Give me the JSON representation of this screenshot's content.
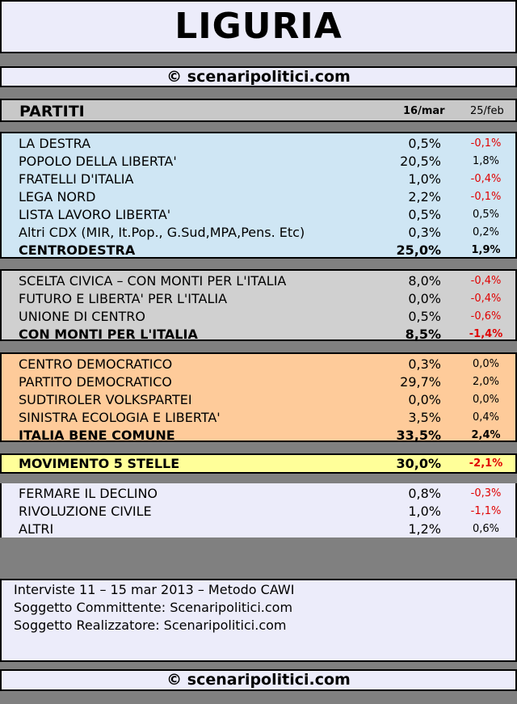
{
  "title": "LIGURIA",
  "credit": "© scenaripolitici.com",
  "header": {
    "label": "PARTITI",
    "date_current": "16/mar",
    "date_previous": "25/feb"
  },
  "groups": {
    "centrodestra": {
      "rows": [
        {
          "name": "LA DESTRA",
          "value": "0,5%",
          "delta": "-0,1%",
          "neg": true
        },
        {
          "name": "POPOLO DELLA LIBERTA'",
          "value": "20,5%",
          "delta": "1,8%",
          "neg": false
        },
        {
          "name": "FRATELLI D'ITALIA",
          "value": "1,0%",
          "delta": "-0,4%",
          "neg": true
        },
        {
          "name": "LEGA NORD",
          "value": "2,2%",
          "delta": "-0,1%",
          "neg": true
        },
        {
          "name": "LISTA LAVORO LIBERTA'",
          "value": "0,5%",
          "delta": "0,5%",
          "neg": false
        },
        {
          "name": "Altri CDX (MIR, It.Pop., G.Sud,MPA,Pens. Etc)",
          "value": "0,3%",
          "delta": "0,2%",
          "neg": false
        }
      ],
      "total": {
        "name": "CENTRODESTRA",
        "value": "25,0%",
        "delta": "1,9%",
        "neg": false
      }
    },
    "monti": {
      "rows": [
        {
          "name": "SCELTA CIVICA – CON MONTI PER L'ITALIA",
          "value": "8,0%",
          "delta": "-0,4%",
          "neg": true
        },
        {
          "name": "FUTURO E LIBERTA' PER L'ITALIA",
          "value": "0,0%",
          "delta": "-0,4%",
          "neg": true
        },
        {
          "name": "UNIONE DI CENTRO",
          "value": "0,5%",
          "delta": "-0,6%",
          "neg": true
        }
      ],
      "total": {
        "name": "CON MONTI PER L'ITALIA",
        "value": "8,5%",
        "delta": "-1,4%",
        "neg": true
      }
    },
    "ibc": {
      "rows": [
        {
          "name": "CENTRO DEMOCRATICO",
          "value": "0,3%",
          "delta": "0,0%",
          "neg": false
        },
        {
          "name": "PARTITO DEMOCRATICO",
          "value": "29,7%",
          "delta": "2,0%",
          "neg": false
        },
        {
          "name": "SUDTIROLER VOLKSPARTEI",
          "value": "0,0%",
          "delta": "0,0%",
          "neg": false
        },
        {
          "name": "SINISTRA ECOLOGIA E LIBERTA'",
          "value": "3,5%",
          "delta": "0,4%",
          "neg": false
        }
      ],
      "total": {
        "name": "ITALIA BENE COMUNE",
        "value": "33,5%",
        "delta": "2,4%",
        "neg": false
      }
    },
    "m5s": {
      "rows": [],
      "total": {
        "name": "MOVIMENTO 5 STELLE",
        "value": "30,0%",
        "delta": "-2,1%",
        "neg": true
      }
    },
    "other": {
      "rows": [
        {
          "name": "FERMARE IL DECLINO",
          "value": "0,8%",
          "delta": "-0,3%",
          "neg": true
        },
        {
          "name": "RIVOLUZIONE CIVILE",
          "value": "1,0%",
          "delta": "-1,1%",
          "neg": true
        },
        {
          "name": "ALTRI",
          "value": "1,2%",
          "delta": "0,6%",
          "neg": false
        }
      ]
    }
  },
  "info": {
    "line1": "Interviste 11 – 15 mar 2013 – Metodo CAWI",
    "line2": "Soggetto Committente: Scenaripolitici.com",
    "line3": "Soggetto Realizzatore: Scenaripolitici.com"
  },
  "colors": {
    "negative": "#e00000",
    "centrodestra_bg": "#cfe6f4",
    "monti_bg": "#d0d0d0",
    "ibc_bg": "#fecb9a",
    "m5s_bg": "#ffff99",
    "panel_bg": "#ececfa"
  }
}
